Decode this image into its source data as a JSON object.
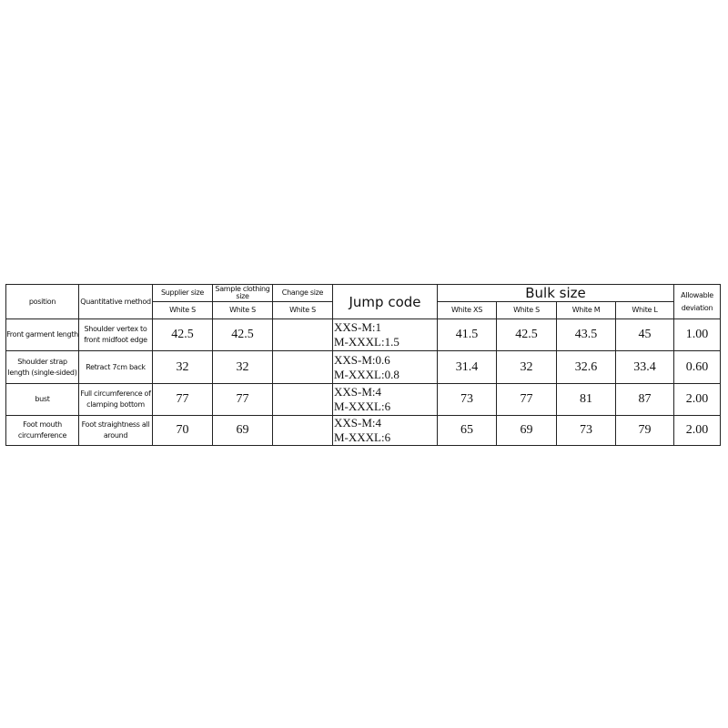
{
  "headers": {
    "position": "position",
    "method": "Quantitative method",
    "supplier": "Supplier size",
    "sample": "Sample clothing size",
    "change": "Change size",
    "jump": "Jump code",
    "bulk": "Bulk size",
    "deviation": "Allowable deviation",
    "supplier_sub": "White S",
    "sample_sub": "White S",
    "change_sub": "White S",
    "bulk_sub": [
      "White XS",
      "White S",
      "White M",
      "White L"
    ]
  },
  "rows": [
    {
      "position": "Front garment length",
      "method": "Shoulder vertex to front midfoot edge",
      "supplier": "42.5",
      "sample": "42.5",
      "change": "",
      "jump": [
        "XXS-M:1",
        "M-XXXL:1.5"
      ],
      "bulk": [
        "41.5",
        "42.5",
        "43.5",
        "45"
      ],
      "deviation": "1.00"
    },
    {
      "position": "Shoulder strap length (single-sided)",
      "method": "Retract 7cm back",
      "supplier": "32",
      "sample": "32",
      "change": "",
      "jump": [
        "XXS-M:0.6",
        "M-XXXL:0.8"
      ],
      "bulk": [
        "31.4",
        "32",
        "32.6",
        "33.4"
      ],
      "deviation": "0.60"
    },
    {
      "position": "bust",
      "method": "Full circumference of clamping bottom",
      "supplier": "77",
      "sample": "77",
      "change": "",
      "jump": [
        "XXS-M:4",
        "M-XXXL:6"
      ],
      "bulk": [
        "73",
        "77",
        "81",
        "87"
      ],
      "deviation": "2.00"
    },
    {
      "position": "Foot mouth circumference",
      "method": "Foot straightness all around",
      "supplier": "70",
      "sample": "69",
      "change": "",
      "jump": [
        "XXS-M:4",
        "M-XXXL:6"
      ],
      "bulk": [
        "65",
        "69",
        "73",
        "79"
      ],
      "deviation": "2.00"
    }
  ]
}
